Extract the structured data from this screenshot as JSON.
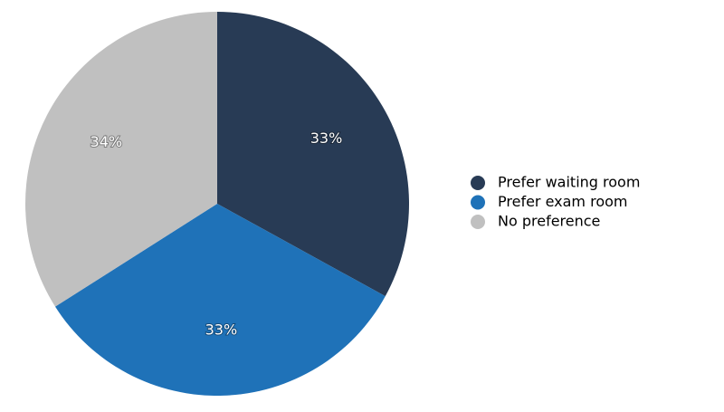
{
  "chart_data": {
    "type": "pie",
    "categories": [
      "Prefer waiting room",
      "Prefer exam room",
      "No preference"
    ],
    "values": [
      33,
      33,
      34
    ],
    "value_labels": [
      "33%",
      "33%",
      "34%"
    ],
    "colors": [
      "#283b55",
      "#1f72b8",
      "#c0c0c0"
    ],
    "legend": "right"
  }
}
